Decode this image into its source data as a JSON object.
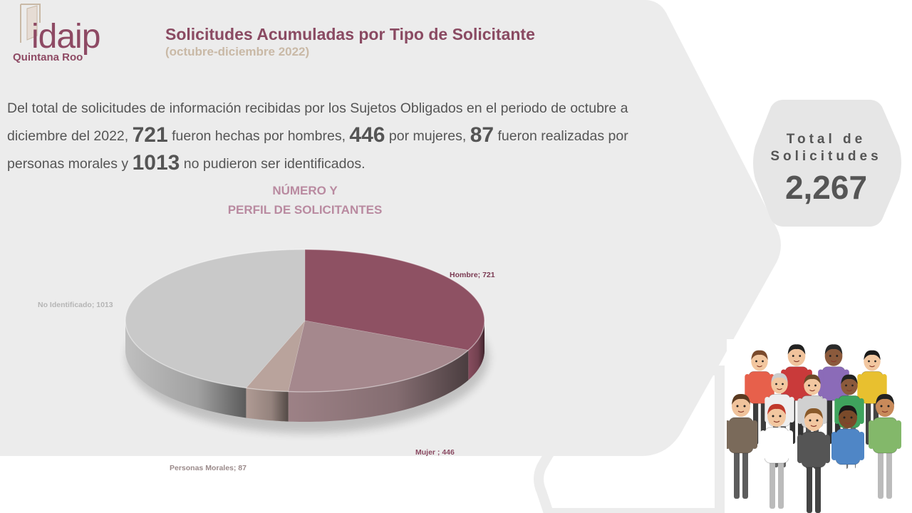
{
  "header": {
    "logo_text": "idaip",
    "logo_subtext": "Quintana Roo",
    "title": "Solicitudes  Acumuladas por Tipo de Solicitante",
    "subtitle": "(octubre-diciembre 2022)"
  },
  "summary": {
    "t1": "Del total de solicitudes de información recibidas por los Sujetos Obligados en el periodo de octubre a diciembre del 2022,",
    "n_hombres": "721",
    "t2": "fueron hechas por hombres,",
    "n_mujeres": "446",
    "t3": "por mujeres,",
    "n_morales": "87",
    "t4": "fueron realizadas por personas morales y",
    "n_noid": "1013",
    "t5": "no pudieron ser identificados."
  },
  "total": {
    "label_line1": "Total de",
    "label_line2": "Solicitudes",
    "value": "2,267"
  },
  "chart_data": {
    "type": "pie",
    "title_line1": "NÚMERO Y",
    "title_line2": "PERFIL DE SOLICITANTES",
    "slices": [
      {
        "label": "Hombre; 721",
        "value": 721,
        "color": "#8e5163",
        "label_color": "#7a3a52"
      },
      {
        "label": "Mujer ; 446",
        "value": 446,
        "color": "#a5888d",
        "label_color": "#8a4a62"
      },
      {
        "label": "Personas Morales; 87",
        "value": 87,
        "color": "#b9a39c",
        "label_color": "#9a8a8a"
      },
      {
        "label": "No Identificado;  1013",
        "value": 1013,
        "color": "#c9c9c9",
        "label_color": "#b5b5b5"
      }
    ]
  },
  "illustration": {
    "icon": "people-group-icon"
  }
}
